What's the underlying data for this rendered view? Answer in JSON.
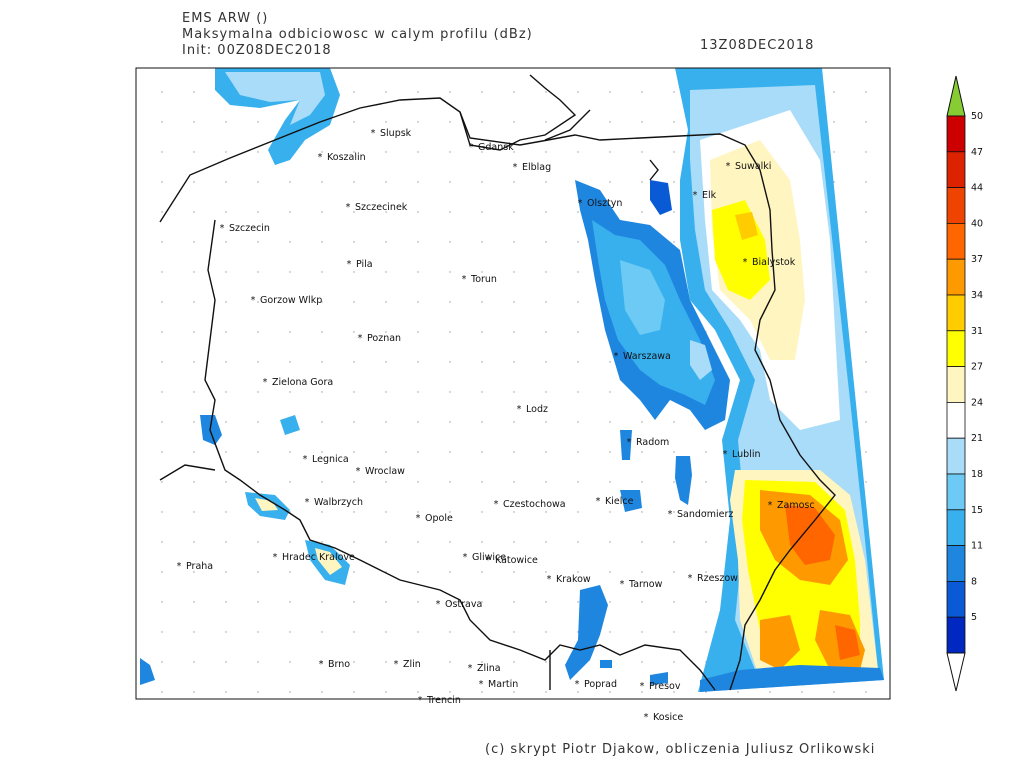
{
  "header": {
    "model": "EMS ARW ()",
    "title": "Maksymalna odbiciowosc w calym profilu (dBz)",
    "init": "Init: 00Z08DEC2018",
    "valid": "13Z08DEC2018"
  },
  "credit": "(c) skrypt Piotr Djakow, obliczenia Juliusz Orlikowski",
  "colorbar": {
    "labels": [
      "50",
      "47",
      "44",
      "40",
      "37",
      "34",
      "31",
      "27",
      "24",
      "21",
      "18",
      "15",
      "11",
      "8",
      "5"
    ],
    "colors": [
      "#cc0000",
      "#dd2200",
      "#ee4400",
      "#ff6600",
      "#ff9900",
      "#ffcc00",
      "#ffff00",
      "#fff5c0",
      "#ffffff",
      "#a8dcf8",
      "#6ccaf4",
      "#38b0ee",
      "#1f86e0",
      "#0a5ad6",
      "#0028c0"
    ],
    "top_arrow_color": "#88cc33",
    "bottom_arrow_color": "#ffffff"
  },
  "cities": [
    "Slupsk",
    "Koszalin",
    "Gdansk",
    "Elblag",
    "Suwalki",
    "Elk",
    "Olsztyn",
    "Szczecinek",
    "Szczecin",
    "Bialystok",
    "Pila",
    "Torun",
    "Gorzow Wlkp",
    "Poznan",
    "Warszawa",
    "Zielona Gora",
    "Lodz",
    "Radom",
    "Lublin",
    "Legnica",
    "Wroclaw",
    "Walbrzych",
    "Czestochowa",
    "Kielce",
    "Sandomierz",
    "Zamosc",
    "Opole",
    "Hradec Kralove",
    "Gliwice",
    "Katowice",
    "Praha",
    "Krakow",
    "Tarnow",
    "Rzeszow",
    "Ostrava",
    "Brno",
    "Zlin",
    "Zlina",
    "Martin",
    "Poprad",
    "Presov",
    "Trencin",
    "Kosice"
  ]
}
